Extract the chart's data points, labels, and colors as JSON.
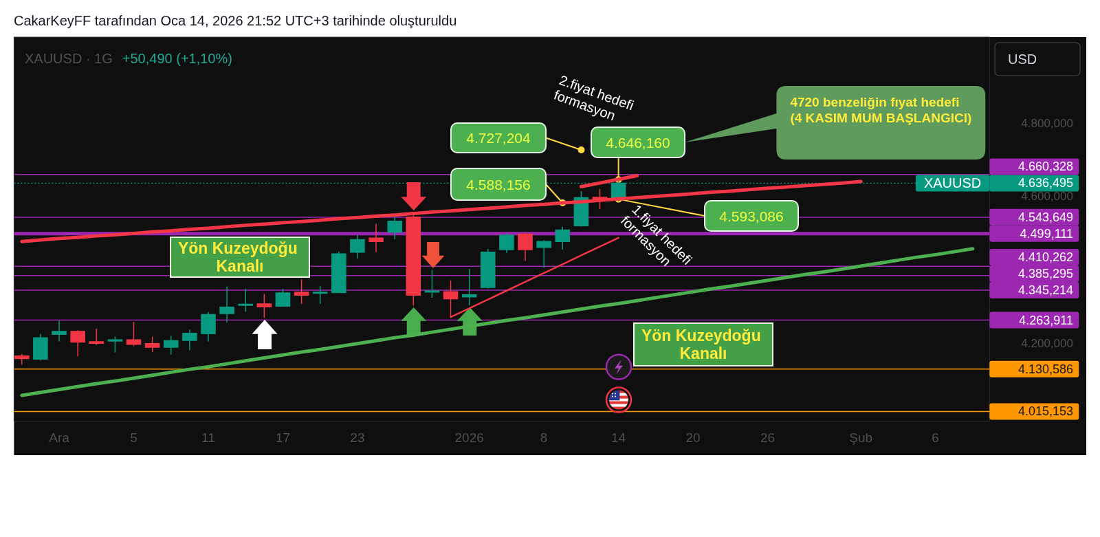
{
  "chart_data": {
    "type": "candlestick",
    "title": "XAUUSD · 1G",
    "subtitle": "+50,490 (+1,10%)",
    "ylabel": "USD",
    "annotations": [
      "CakarKeyFF tarafından Oca 14, 2026 21:52 UTC+3 tarihinde oluşturuldu",
      "Yön Kuzeydoğu\nKanalı",
      "Yön Kuzeydoğu\nKanalı",
      "4.727,204",
      "4.588,156",
      {
        "text": "4.646,160",
        "x": "14",
        "y": 4646.16
      },
      {
        "text": "4.593,086",
        "x": "14",
        "y": 4593.086
      },
      "2.fiyat hedefi\nformasyon",
      "1.fiyat hedefi\nformasyon",
      "4720 benzeliğin fıyat hedefi\n(4 KASIM MUM BAŞLANGICI)",
      "XAUUSD"
    ],
    "categories": [
      null,
      null,
      "Ara",
      null,
      null,
      null,
      "5",
      null,
      null,
      null,
      "11",
      null,
      null,
      null,
      "17",
      null,
      null,
      null,
      "23",
      null,
      null,
      null,
      null,
      null,
      "2026",
      null,
      null,
      null,
      "8",
      null,
      null,
      null,
      "14",
      null,
      null,
      null,
      "20",
      null,
      null,
      null,
      "26",
      null,
      null,
      null,
      null,
      "Şub",
      null,
      null,
      null,
      "6",
      null,
      null
    ],
    "ohlc": [
      [
        4166,
        4172,
        4143,
        4159
      ],
      [
        4158,
        4226,
        4154,
        4216
      ],
      [
        4225,
        4263,
        4206,
        4233
      ],
      [
        4233,
        4236,
        4165,
        4204
      ],
      [
        4205,
        4241,
        4196,
        4201
      ],
      [
        4207,
        4219,
        4176,
        4210
      ],
      [
        4210,
        4259,
        4193,
        4198
      ],
      [
        4200,
        4219,
        4177,
        4190
      ],
      [
        4190,
        4221,
        4170,
        4208
      ],
      [
        4209,
        4238,
        4182,
        4228
      ],
      [
        4227,
        4286,
        4206,
        4279
      ],
      [
        4282,
        4355,
        4258,
        4299
      ],
      [
        4304,
        4349,
        4287,
        4307
      ],
      [
        4308,
        4335,
        4270,
        4300
      ],
      [
        4302,
        4349,
        4302,
        4338
      ],
      [
        4340,
        4375,
        4308,
        4332
      ],
      [
        4337,
        4356,
        4308,
        4340
      ],
      [
        4339,
        4450,
        4338,
        4444
      ],
      [
        4449,
        4495,
        4431,
        4483
      ],
      [
        4487,
        4526,
        4449,
        4478
      ],
      [
        4503,
        4550,
        4484,
        4533
      ],
      [
        4544,
        4550,
        4304,
        4332
      ],
      [
        4341,
        4400,
        4325,
        4343
      ],
      [
        4341,
        4372,
        4272,
        4322
      ],
      [
        4327,
        4403,
        4304,
        4333
      ],
      [
        4353,
        4457,
        4350,
        4449
      ],
      [
        4456,
        4500,
        4447,
        4495
      ],
      [
        4498,
        4503,
        4425,
        4456
      ],
      [
        4462,
        4481,
        4406,
        4478
      ],
      [
        4478,
        4518,
        4456,
        4509
      ],
      [
        4521,
        4615,
        4518,
        4597
      ],
      [
        4598,
        4621,
        4566,
        4590
      ],
      [
        4593.086,
        4646.16,
        4587,
        4636.495
      ],
      null,
      null,
      null,
      null,
      null,
      null,
      null,
      null,
      null,
      null,
      null,
      null,
      null,
      null,
      null,
      null,
      null,
      null,
      null
    ],
    "colors": [
      "#f23645",
      "#089981",
      "#089981",
      "#f23645",
      "#f23645",
      "#089981",
      "#f23645",
      "#f23645",
      "#089981",
      "#089981",
      "#089981",
      "#089981",
      "#089981",
      "#f23645",
      "#089981",
      "#f23645",
      "#089981",
      "#089981",
      "#089981",
      "#f23645",
      "#089981",
      "#f23645",
      "#089981",
      "#f23645",
      "#089981",
      "#089981",
      "#089981",
      "#f23645",
      "#089981",
      "#089981",
      "#089981",
      "#f23645",
      "#089981",
      null,
      null,
      null,
      null,
      null,
      null,
      null,
      null,
      null,
      null,
      null,
      null,
      null,
      null,
      null,
      null,
      null,
      null,
      null
    ],
    "ylim": [
      3988,
      5034
    ],
    "yticks": [
      {
        "value": 4200,
        "label": "4.200,000"
      },
      {
        "value": 4600,
        "label": "4.600,000"
      },
      {
        "value": 4800,
        "label": "4.800,000"
      }
    ],
    "series": [
      {
        "type": "line",
        "color": "#f23645",
        "values": [
          4478,
          4482,
          4486,
          4489,
          4493,
          4496,
          4500,
          4504,
          4507,
          4511,
          4514,
          4518,
          4522,
          4525,
          4529,
          4532,
          4536,
          4540,
          4543,
          4547,
          4550,
          4554,
          4558,
          4561,
          4565,
          4568,
          4572,
          4576,
          4579,
          4583,
          4586,
          4590,
          4594,
          4597,
          4601,
          4604,
          4608,
          4612,
          4615,
          4619,
          4623,
          4626,
          4630,
          4633,
          4637,
          4641,
          null,
          null,
          null,
          null,
          null,
          null
        ]
      },
      {
        "type": "line",
        "color": "#f23645",
        "values": [
          null,
          null,
          null,
          null,
          null,
          null,
          null,
          null,
          null,
          null,
          null,
          null,
          null,
          null,
          null,
          null,
          null,
          null,
          null,
          null,
          null,
          null,
          null,
          null,
          null,
          null,
          null,
          null,
          null,
          null,
          4627,
          4637,
          4647,
          4657,
          null,
          null,
          null,
          null,
          null,
          null,
          null,
          null,
          null,
          null,
          null,
          null,
          null,
          null,
          null,
          null,
          null,
          null
        ]
      },
      {
        "type": "line",
        "color": "#f23645",
        "values": [
          null,
          null,
          null,
          null,
          null,
          null,
          null,
          null,
          null,
          null,
          null,
          null,
          null,
          null,
          null,
          null,
          null,
          null,
          null,
          null,
          null,
          null,
          null,
          4272,
          4296,
          4320,
          4344,
          4368,
          4392,
          4416,
          4440,
          4464,
          4488,
          null,
          null,
          null,
          null,
          null,
          null,
          null,
          null,
          null,
          null,
          null,
          null,
          null,
          null,
          null,
          null,
          null,
          null,
          null
        ]
      },
      {
        "type": "line",
        "color": "#4caf50",
        "values": [
          4059,
          4067,
          4075,
          4083,
          4091,
          4098,
          4106,
          4114,
          4122,
          4130,
          4137,
          4145,
          4153,
          4161,
          4169,
          4177,
          4184,
          4192,
          4200,
          4208,
          4216,
          4223,
          4231,
          4239,
          4247,
          4255,
          4263,
          4270,
          4278,
          4286,
          4294,
          4302,
          4309,
          4317,
          4325,
          4333,
          4341,
          4349,
          4356,
          4364,
          4372,
          4380,
          4388,
          4395,
          4403,
          4411,
          4419,
          4427,
          4435,
          4442,
          4450,
          4458
        ]
      }
    ],
    "ref_lines": [
      {
        "axis": "y",
        "value": 4660.328,
        "label": "4.660,328",
        "color": "#9c27b0"
      },
      {
        "axis": "y",
        "value": 4636.495,
        "label": "4.636,495",
        "color": "#089981",
        "line_style": "dotted"
      },
      {
        "axis": "y",
        "value": 4543.649,
        "label": "4.543,649",
        "color": "#9c27b0"
      },
      {
        "axis": "y",
        "value": 4499.111,
        "label": "4.499,111",
        "color": "#9c27b0"
      },
      {
        "axis": "y",
        "value": 4410.262,
        "label": "4.410,262",
        "color": "#9c27b0"
      },
      {
        "axis": "y",
        "value": 4385.295,
        "label": "4.385,295",
        "color": "#9c27b0"
      },
      {
        "axis": "y",
        "value": 4345.214,
        "label": "4.345,214",
        "color": "#9c27b0"
      },
      {
        "axis": "y",
        "value": 4263.911,
        "label": "4.263,911",
        "color": "#9c27b0"
      },
      {
        "axis": "y",
        "value": 4130.586,
        "label": "4.130,586",
        "color": "#ff9800"
      },
      {
        "axis": "y",
        "value": 4015.153,
        "label": "4.015,153",
        "color": "#ff9800"
      }
    ]
  }
}
